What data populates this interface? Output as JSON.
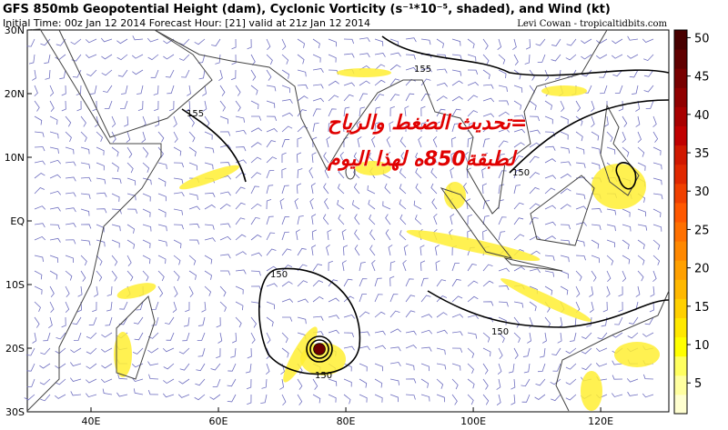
{
  "header": {
    "title": "GFS 850mb Geopotential Height (dam), Cyclonic Vorticity (s⁻¹*10⁻⁵, shaded), and Wind (kt)",
    "subtitle": "Initial Time: 00z Jan 12 2014 Forecast Hour: [21] valid at 21z Jan 12 2014",
    "credit": "Levi Cowan - tropicaltidbits.com"
  },
  "map": {
    "xlim": [
      30,
      130.7
    ],
    "ylim": [
      -30,
      30
    ],
    "xticks": [
      {
        "value": 40,
        "label": "40E"
      },
      {
        "value": 60,
        "label": "60E"
      },
      {
        "value": 80,
        "label": "80E"
      },
      {
        "value": 100,
        "label": "100E"
      },
      {
        "value": 120,
        "label": "120E"
      }
    ],
    "yticks": [
      {
        "value": 30,
        "label": "30N"
      },
      {
        "value": 20,
        "label": "20N"
      },
      {
        "value": 10,
        "label": "10N"
      },
      {
        "value": 0,
        "label": "EQ"
      },
      {
        "value": -10,
        "label": "10S"
      },
      {
        "value": -20,
        "label": "20S"
      },
      {
        "value": -30,
        "label": "30S"
      }
    ],
    "contour_labels": [
      155,
      155,
      150,
      150,
      150,
      150
    ]
  },
  "colorbar": {
    "lim": [
      1,
      51
    ],
    "ticks": [
      5,
      10,
      15,
      20,
      25,
      30,
      35,
      40,
      45,
      50
    ],
    "colors": [
      "#ffffd0",
      "#ffffa0",
      "#ffff60",
      "#ffff00",
      "#ffe800",
      "#ffd000",
      "#ffb800",
      "#ffa000",
      "#ff8800",
      "#ff7000",
      "#ff5800",
      "#f04000",
      "#e02800",
      "#d01800",
      "#c00000",
      "#a80000",
      "#900000",
      "#780000",
      "#600000",
      "#480000"
    ]
  },
  "overlay": {
    "line1": "=تحديث الضغط والرياح",
    "line2": "لطبقة850ه لهذا اليوم"
  }
}
